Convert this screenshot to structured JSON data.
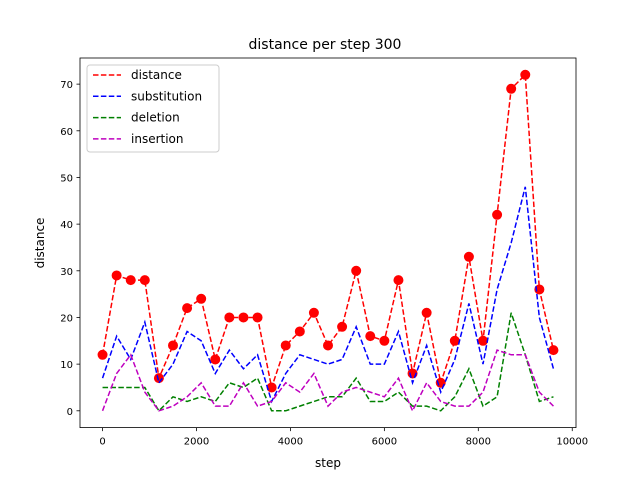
{
  "chart_data": {
    "type": "line",
    "title": "distance per step 300",
    "xlabel": "step",
    "ylabel": "distance",
    "xlim": [
      -480,
      10080
    ],
    "ylim": [
      -3.6,
      75.6
    ],
    "xticks": [
      0,
      2000,
      4000,
      6000,
      8000,
      10000
    ],
    "yticks": [
      0,
      10,
      20,
      30,
      40,
      50,
      60,
      70
    ],
    "grid": false,
    "legend_position": "top-left",
    "x": [
      0,
      300,
      600,
      900,
      1200,
      1500,
      1800,
      2100,
      2400,
      2700,
      3000,
      3300,
      3600,
      3900,
      4200,
      4500,
      4800,
      5100,
      5400,
      5700,
      6000,
      6300,
      6600,
      6900,
      7200,
      7500,
      7800,
      8100,
      8400,
      8700,
      9000,
      9300,
      9600
    ],
    "series": [
      {
        "name": "distance",
        "color": "#ff0000",
        "style": "dashed",
        "markers": true,
        "values": [
          12,
          29,
          28,
          28,
          7,
          14,
          22,
          24,
          11,
          20,
          20,
          20,
          5,
          14,
          17,
          21,
          14,
          18,
          30,
          16,
          15,
          28,
          8,
          21,
          6,
          15,
          33,
          15,
          42,
          69,
          72,
          26,
          13
        ]
      },
      {
        "name": "substitution",
        "color": "#0000ff",
        "style": "dashed",
        "markers": false,
        "values": [
          7,
          16,
          11,
          19,
          6,
          10,
          17,
          15,
          8,
          13,
          9,
          12,
          2,
          8,
          12,
          11,
          10,
          11,
          18,
          10,
          10,
          17,
          6,
          14,
          4,
          11,
          23,
          10,
          26,
          36,
          48,
          20,
          9
        ]
      },
      {
        "name": "deletion",
        "color": "#008000",
        "style": "dashed",
        "markers": false,
        "values": [
          5,
          5,
          5,
          5,
          0,
          3,
          2,
          3,
          2,
          6,
          5,
          7,
          0,
          0,
          1,
          2,
          3,
          3,
          7,
          2,
          2,
          4,
          1,
          1,
          0,
          3,
          9,
          1,
          3,
          21,
          12,
          2,
          3
        ]
      },
      {
        "name": "insertion",
        "color": "#bf00bf",
        "style": "dashed",
        "markers": false,
        "values": [
          0,
          8,
          12,
          4,
          0,
          1,
          3,
          6,
          1,
          1,
          6,
          1,
          2,
          6,
          4,
          8,
          1,
          4,
          5,
          4,
          3,
          7,
          0,
          6,
          2,
          1,
          1,
          4,
          13,
          12,
          12,
          4,
          1
        ]
      }
    ]
  }
}
